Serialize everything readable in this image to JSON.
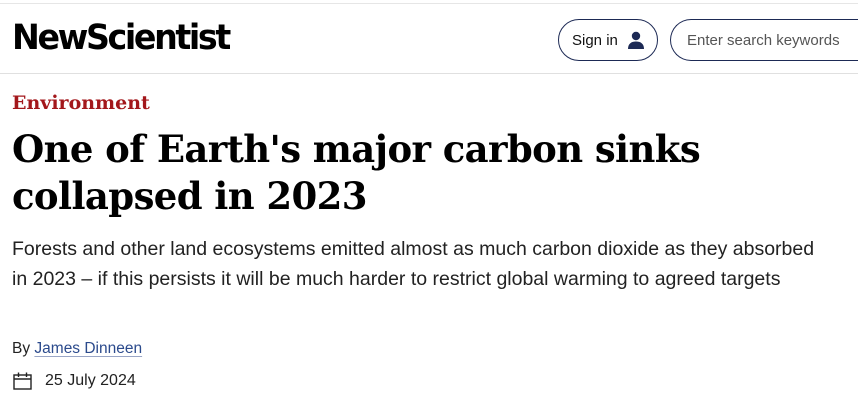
{
  "header": {
    "logo_text": "NewScientist",
    "signin_label": "Sign in",
    "user_icon": "user-icon",
    "search_placeholder": "Enter search keywords"
  },
  "article": {
    "category": "Environment",
    "headline": "One of Earth's major carbon sinks collapsed in 2023",
    "standfirst": "Forests and other land ecosystems emitted almost as much carbon dioxide as they absorbed in 2023 – if this persists it will be much harder to restrict global warming to agreed targets",
    "byline_prefix": "By",
    "author": "James Dinneen",
    "date_icon": "calendar-icon",
    "date": "25 July 2024"
  },
  "colors": {
    "category": "#a3171b",
    "button_border": "#1d2a55",
    "author_link": "#2b4a8c"
  }
}
